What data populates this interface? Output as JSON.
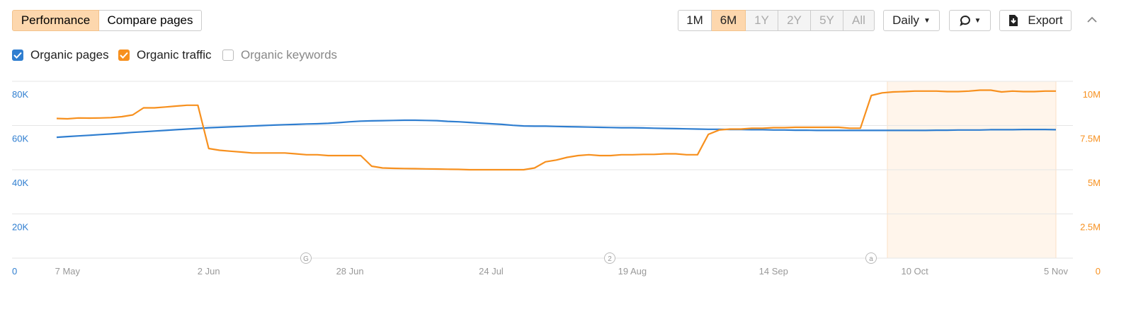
{
  "toolbar": {
    "tabs": [
      "Performance",
      "Compare pages"
    ],
    "ranges": [
      "1M",
      "6M",
      "1Y",
      "2Y",
      "5Y",
      "All"
    ],
    "interval": "Daily",
    "export": "Export"
  },
  "chart_data": {
    "type": "line",
    "categories": [
      null,
      "7 May",
      null,
      null,
      null,
      null,
      null,
      null,
      null,
      null,
      null,
      null,
      null,
      null,
      "2 Jun",
      null,
      null,
      null,
      null,
      null,
      null,
      null,
      null,
      null,
      null,
      null,
      null,
      "28 Jun",
      null,
      null,
      null,
      null,
      null,
      null,
      null,
      null,
      null,
      null,
      null,
      null,
      "24 Jul",
      null,
      null,
      null,
      null,
      null,
      null,
      null,
      null,
      null,
      null,
      null,
      null,
      "19 Aug",
      null,
      null,
      null,
      null,
      null,
      null,
      null,
      null,
      null,
      null,
      null,
      null,
      "14 Sep",
      null,
      null,
      null,
      null,
      null,
      null,
      null,
      null,
      null,
      null,
      null,
      null,
      "10 Oct",
      null,
      null,
      null,
      null,
      null,
      null,
      null,
      null,
      null,
      null,
      null,
      null,
      "5 Nov"
    ],
    "series": [
      {
        "name": "Organic pages",
        "color": "#2f7ed0",
        "values": [
          54700,
          55000,
          55300,
          55600,
          55900,
          56200,
          56500,
          56900,
          57200,
          57500,
          57800,
          58100,
          58400,
          58700,
          59000,
          59200,
          59400,
          59600,
          59800,
          60000,
          60200,
          60400,
          60500,
          60700,
          60800,
          61000,
          61300,
          61700,
          62000,
          62100,
          62200,
          62300,
          62400,
          62400,
          62300,
          62200,
          61900,
          61700,
          61400,
          61100,
          60800,
          60500,
          60100,
          59800,
          59700,
          59700,
          59600,
          59500,
          59400,
          59300,
          59200,
          59100,
          59000,
          59000,
          58900,
          58800,
          58700,
          58600,
          58500,
          58400,
          58300,
          58300,
          58200,
          58200,
          58100,
          58100,
          58000,
          58000,
          57900,
          57900,
          57800,
          57800,
          57800,
          57800,
          57800,
          57800,
          57800,
          57800,
          57800,
          57800,
          57800,
          57900,
          57900,
          58000,
          58000,
          58000,
          58100,
          58100,
          58100,
          58200,
          58200,
          58200,
          58100
        ]
      },
      {
        "name": "Organic traffic",
        "color": "#f7901e",
        "axis": "y2",
        "values": [
          7900000,
          7880000,
          7930000,
          7920000,
          7930000,
          7950000,
          8000000,
          8100000,
          8500000,
          8500000,
          8550000,
          8600000,
          8650000,
          8650000,
          6200000,
          6100000,
          6050000,
          6000000,
          5950000,
          5950000,
          5950000,
          5950000,
          5900000,
          5850000,
          5850000,
          5800000,
          5800000,
          5800000,
          5800000,
          5200000,
          5100000,
          5080000,
          5070000,
          5060000,
          5050000,
          5040000,
          5030000,
          5020000,
          5000000,
          5000000,
          5000000,
          5000000,
          5000000,
          5000000,
          5100000,
          5450000,
          5550000,
          5700000,
          5800000,
          5850000,
          5800000,
          5800000,
          5850000,
          5850000,
          5870000,
          5870000,
          5900000,
          5900000,
          5850000,
          5850000,
          7000000,
          7250000,
          7300000,
          7300000,
          7350000,
          7350000,
          7380000,
          7380000,
          7400000,
          7400000,
          7400000,
          7400000,
          7400000,
          7350000,
          7350000,
          9200000,
          9350000,
          9400000,
          9420000,
          9450000,
          9450000,
          9450000,
          9420000,
          9420000,
          9450000,
          9500000,
          9500000,
          9400000,
          9450000,
          9420000,
          9420000,
          9450000,
          9450000
        ]
      }
    ],
    "inactive_series": [
      "Organic keywords"
    ],
    "annotations": [
      "G",
      "2",
      "a"
    ],
    "ylim": [
      0,
      80000
    ],
    "yticks": [
      0,
      {
        "value": 20000,
        "label": "20K"
      },
      {
        "value": 40000,
        "label": "40K"
      },
      {
        "value": 60000,
        "label": "60K"
      },
      {
        "value": 80000,
        "label": "80K"
      }
    ],
    "y2lim": [
      0,
      10000000
    ],
    "y2ticks": [
      0,
      {
        "value": 2500000,
        "label": "2.5M"
      },
      {
        "value": 5000000,
        "label": "5M"
      },
      {
        "value": 7500000,
        "label": "7.5M"
      },
      {
        "value": 10000000,
        "label": "10M"
      }
    ],
    "grid": true
  }
}
